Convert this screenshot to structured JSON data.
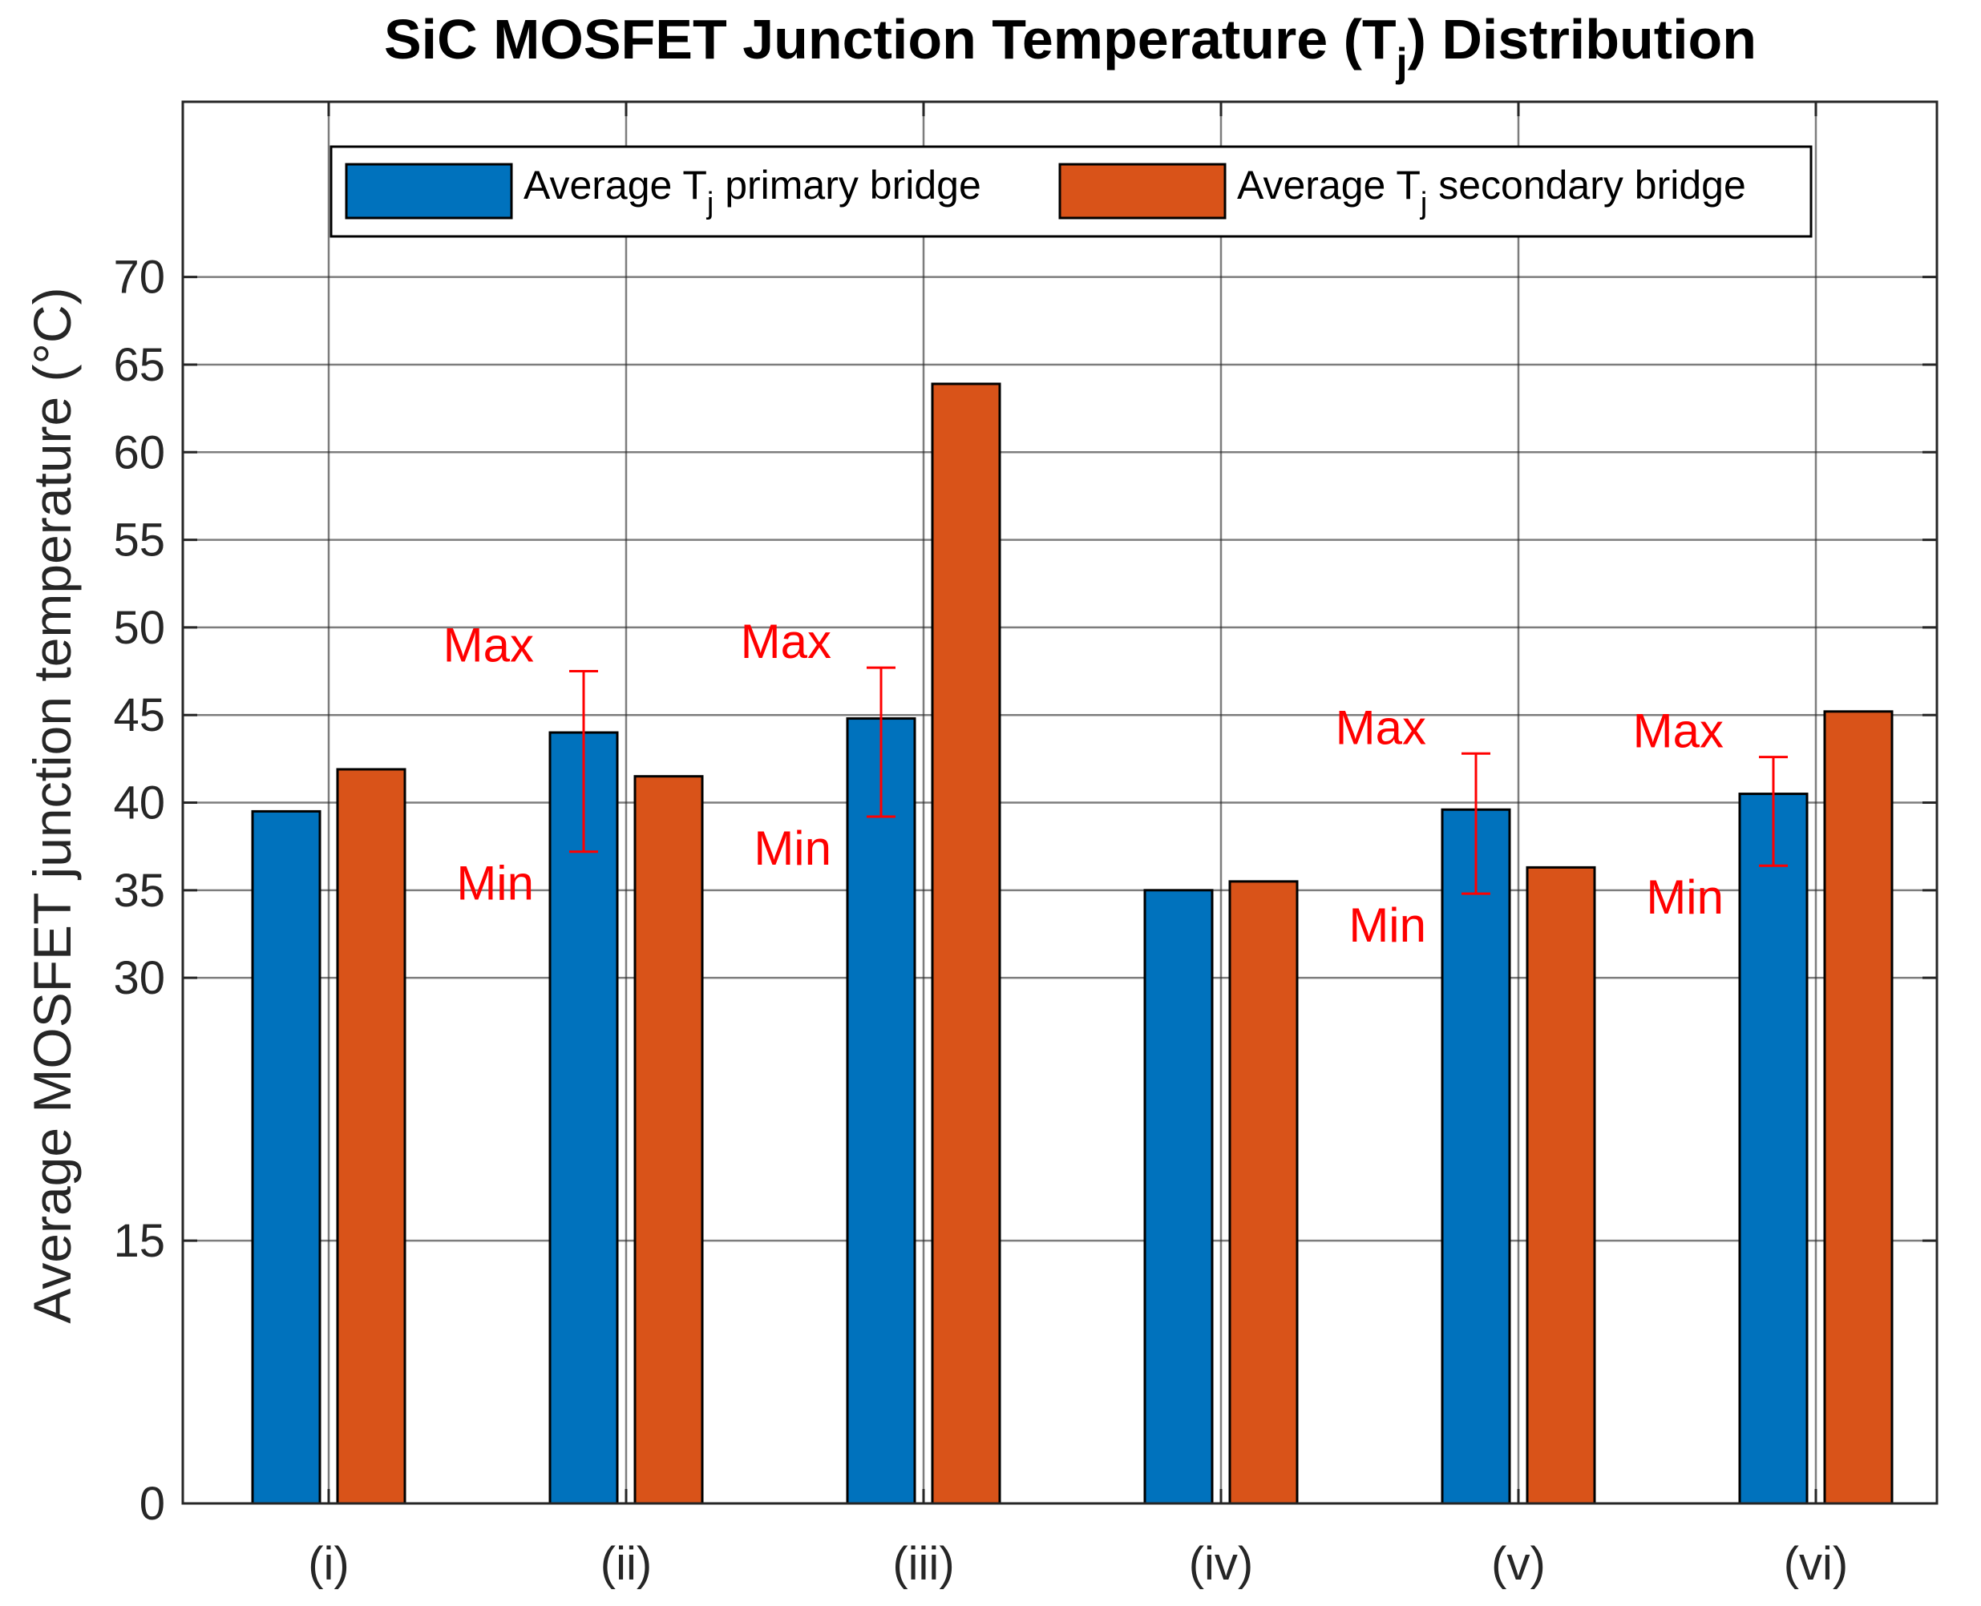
{
  "chart_data": {
    "type": "bar",
    "title": "SiC MOSFET Junction Temperature (T",
    "title_sub": "j",
    "title_suffix": ") Distribution",
    "xlabel": "",
    "ylabel": "Average MOSFET junction temperature (°C)",
    "ylim": [
      0,
      80
    ],
    "yticks": [
      0,
      15,
      30,
      35,
      40,
      45,
      50,
      55,
      60,
      65,
      70
    ],
    "categories": [
      "(i)",
      "(ii)",
      "(iii)",
      "(iv)",
      "(v)",
      "(vi)"
    ],
    "grid": true,
    "legend_position": "top",
    "series": [
      {
        "name": "Average T",
        "name_sub": "j",
        "name_suffix": " primary bridge",
        "color": "#0072bd",
        "values": [
          39.5,
          44.0,
          44.8,
          35.0,
          39.6,
          40.5
        ]
      },
      {
        "name": "Average T",
        "name_sub": "j",
        "name_suffix": " secondary bridge",
        "color": "#d95319",
        "values": [
          41.9,
          41.5,
          63.9,
          35.5,
          36.3,
          45.2
        ]
      }
    ],
    "error_bars": [
      {
        "category": "(ii)",
        "series": 0,
        "min": 37.2,
        "max": 47.5,
        "max_label": "Max",
        "min_label": "Min"
      },
      {
        "category": "(iii)",
        "series": 0,
        "min": 39.2,
        "max": 47.7,
        "max_label": "Max",
        "min_label": "Min"
      },
      {
        "category": "(v)",
        "series": 0,
        "min": 34.8,
        "max": 42.8,
        "max_label": "Max",
        "min_label": "Min"
      },
      {
        "category": "(vi)",
        "series": 0,
        "min": 36.4,
        "max": 42.6,
        "max_label": "Max",
        "min_label": "Min"
      }
    ],
    "error_color": "#ff0000"
  }
}
